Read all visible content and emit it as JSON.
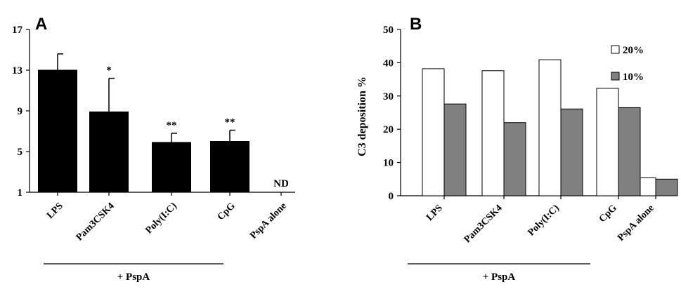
{
  "chart_data": [
    {
      "panel_label": "A",
      "type": "bar",
      "categories": [
        "LPS",
        "Pam3CSK4",
        "Poly(I:C)",
        "CpG",
        "PspA alone"
      ],
      "ylim": [
        1,
        17
      ],
      "yticks": [
        1,
        5,
        9,
        13,
        17
      ],
      "ylabel": "",
      "series": [
        {
          "values": [
            13.0,
            8.9,
            5.9,
            6.0,
            null
          ],
          "errors": [
            1.6,
            3.3,
            0.9,
            1.1,
            null
          ],
          "color": "#000000"
        }
      ],
      "annotations": [
        "",
        "*",
        "**",
        "**",
        "ND"
      ],
      "group_label": "+ PspA",
      "grid": false,
      "legend": "none"
    },
    {
      "panel_label": "B",
      "type": "bar",
      "categories": [
        "LPS",
        "Pam3CSK4",
        "Poly(I:C)",
        "CpG",
        "PspA alone"
      ],
      "ylim": [
        0,
        50
      ],
      "yticks": [
        0,
        10,
        20,
        30,
        40,
        50
      ],
      "ylabel": "C3 deposition %",
      "series": [
        {
          "name": "20%",
          "values": [
            38.2,
            37.6,
            40.9,
            32.3,
            5.4
          ],
          "color": "#ffffff"
        },
        {
          "name": "10%",
          "values": [
            27.6,
            22.0,
            26.1,
            26.5,
            5.0
          ],
          "color": "#808080"
        }
      ],
      "group_label": "+ PspA",
      "grid": false,
      "legend": "top-right"
    }
  ]
}
